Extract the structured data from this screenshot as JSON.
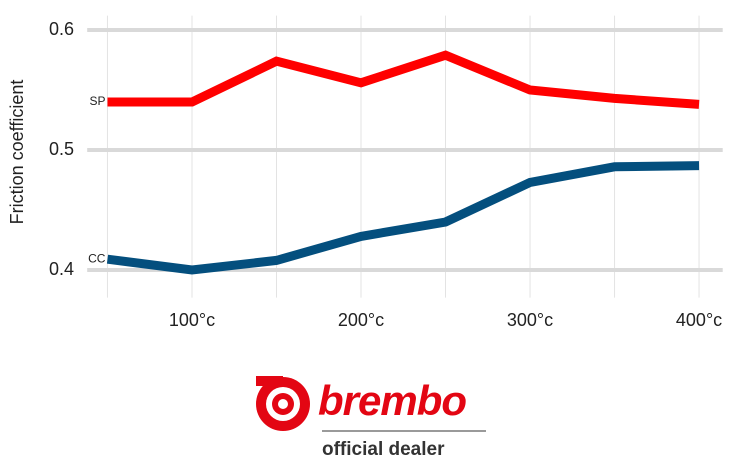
{
  "chart_data": {
    "type": "line",
    "y_label": "Friction coefficient",
    "x": [
      50,
      100,
      150,
      200,
      250,
      300,
      350,
      400
    ],
    "series": [
      {
        "name": "SP",
        "color": "#ff0000",
        "values": [
          0.54,
          0.54,
          0.574,
          0.556,
          0.579,
          0.55,
          0.543,
          0.538
        ]
      },
      {
        "name": "CC",
        "color": "#044f7e",
        "values": [
          0.409,
          0.4,
          0.408,
          0.428,
          0.44,
          0.473,
          0.486,
          0.487
        ]
      }
    ],
    "xlim": [
      38,
      414
    ],
    "xticks": [
      {
        "value": 100,
        "label": "100°c"
      },
      {
        "value": 200,
        "label": "200°c"
      },
      {
        "value": 300,
        "label": "300°c"
      },
      {
        "value": 400,
        "label": "400°c"
      }
    ],
    "xminorticks": [
      50,
      150,
      250,
      350
    ],
    "ylim": [
      0.377,
      0.612
    ],
    "yticks": [
      0.4,
      0.5,
      0.6
    ],
    "grid": true
  },
  "logo": {
    "brand": "brembo",
    "tagline": "official dealer"
  }
}
